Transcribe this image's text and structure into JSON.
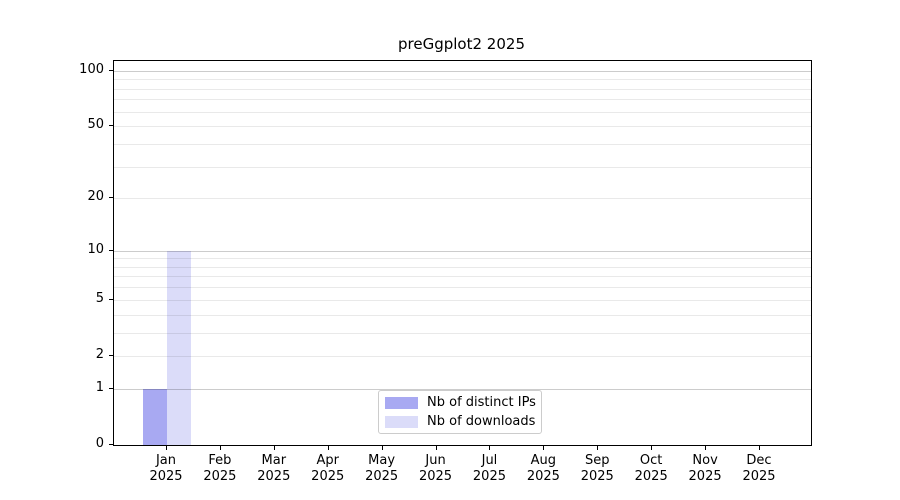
{
  "figure": {
    "background": "#ffffff"
  },
  "chart_data": {
    "type": "bar",
    "title": "preGgplot2 2025",
    "x_categories": [
      {
        "month": "Jan",
        "year": "2025"
      },
      {
        "month": "Feb",
        "year": "2025"
      },
      {
        "month": "Mar",
        "year": "2025"
      },
      {
        "month": "Apr",
        "year": "2025"
      },
      {
        "month": "May",
        "year": "2025"
      },
      {
        "month": "Jun",
        "year": "2025"
      },
      {
        "month": "Jul",
        "year": "2025"
      },
      {
        "month": "Aug",
        "year": "2025"
      },
      {
        "month": "Sep",
        "year": "2025"
      },
      {
        "month": "Oct",
        "year": "2025"
      },
      {
        "month": "Nov",
        "year": "2025"
      },
      {
        "month": "Dec",
        "year": "2025"
      }
    ],
    "series": [
      {
        "name": "Nb of distinct IPs",
        "color": "#a8a9f2",
        "values": [
          1,
          0,
          0,
          0,
          0,
          0,
          0,
          0,
          0,
          0,
          0,
          0
        ]
      },
      {
        "name": "Nb of downloads",
        "color": "#dbdcf9",
        "values": [
          10,
          0,
          0,
          0,
          0,
          0,
          0,
          0,
          0,
          0,
          0,
          0
        ]
      }
    ],
    "y_axis": {
      "scale": "log10(value+1)",
      "ylim": [
        0,
        113
      ],
      "major_ticks": [
        0,
        1,
        2,
        5,
        10,
        20,
        50,
        100
      ],
      "emphasized_gridlines": [
        1,
        10,
        100
      ],
      "minor_gridlines": [
        2,
        3,
        4,
        5,
        6,
        7,
        8,
        9,
        20,
        30,
        40,
        50,
        60,
        70,
        80,
        90
      ]
    },
    "grid": "horizontal",
    "legend_position": "lower center"
  }
}
